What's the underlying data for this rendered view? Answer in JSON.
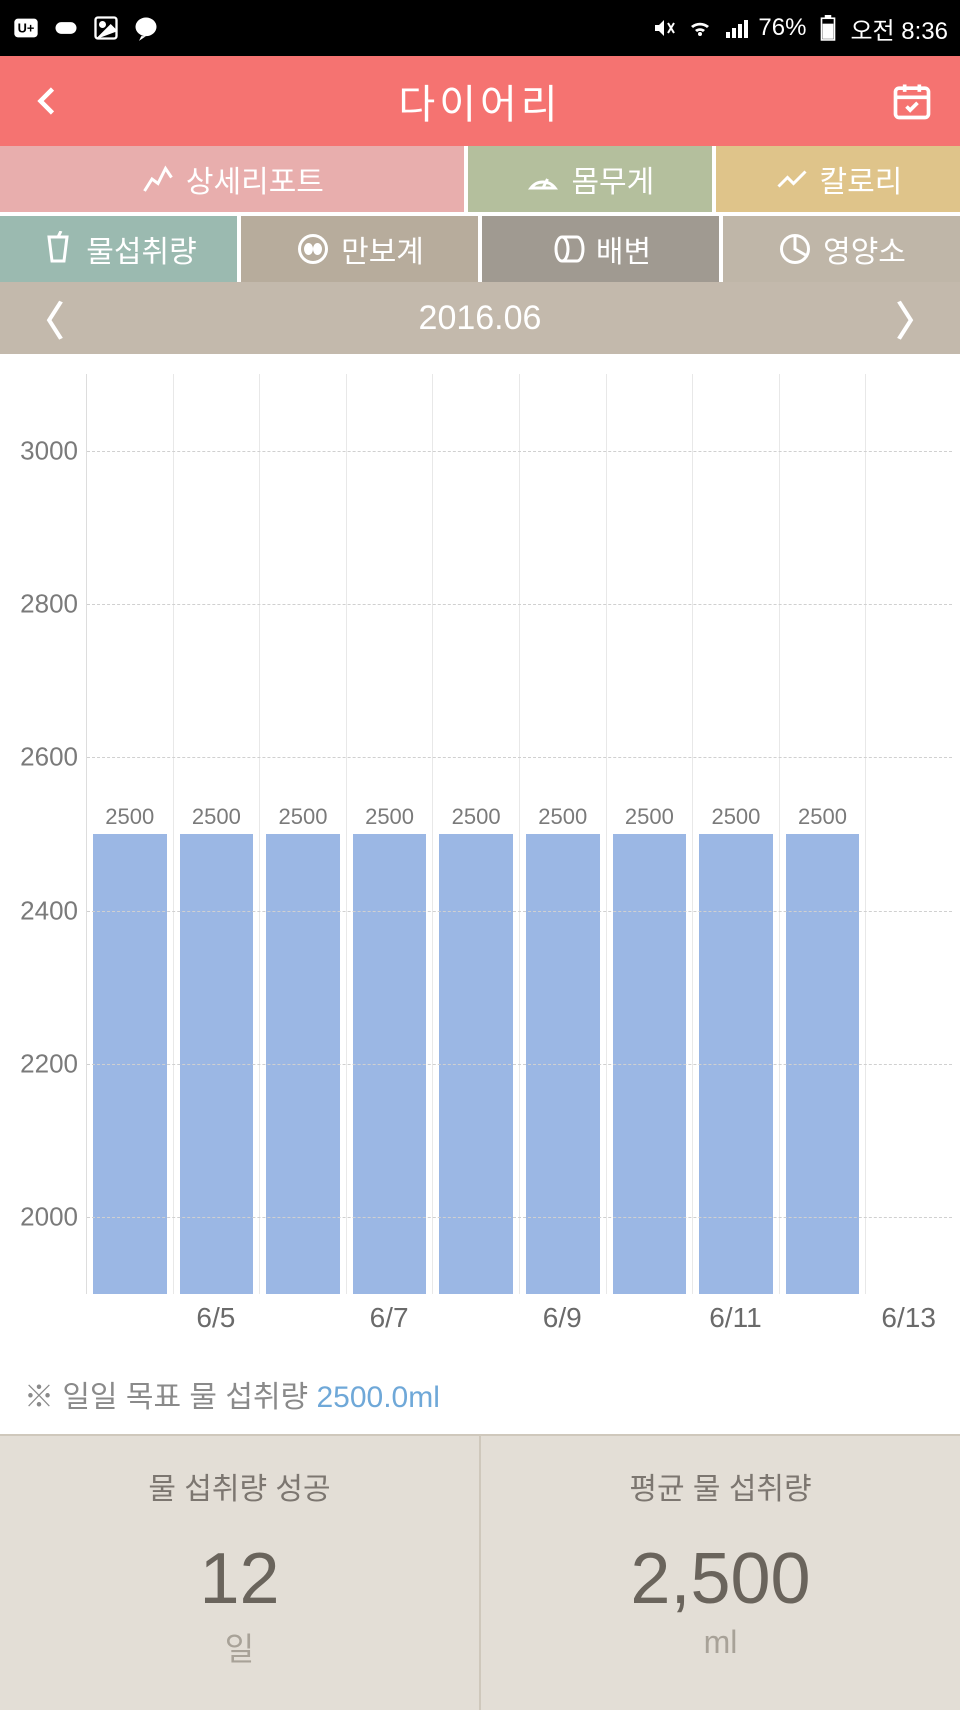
{
  "status_bar": {
    "carrier_icon": "U+",
    "battery_pct": "76%",
    "time": "오전 8:36"
  },
  "header": {
    "title": "다이어리"
  },
  "tabs": {
    "report": "상세리포트",
    "weight": "몸무게",
    "calorie": "칼로리",
    "water": "물섭취량",
    "steps": "만보계",
    "bowel": "배변",
    "nutrition": "영양소"
  },
  "month_nav": {
    "label": "2016.06"
  },
  "chart": {
    "type": "bar",
    "ylim": [
      1900,
      3100
    ],
    "yticks": [
      2000,
      2200,
      2400,
      2600,
      2800,
      3000
    ],
    "bar_color": "#9bb7e4",
    "grid_color": "#d0d0d0",
    "background_color": "#ffffff",
    "label_fontsize": 22,
    "axis_fontsize": 26,
    "bars": [
      {
        "x": "",
        "value": 2500,
        "label": "2500"
      },
      {
        "x": "6/5",
        "value": 2500,
        "label": "2500"
      },
      {
        "x": "",
        "value": 2500,
        "label": "2500"
      },
      {
        "x": "6/7",
        "value": 2500,
        "label": "2500"
      },
      {
        "x": "",
        "value": 2500,
        "label": "2500"
      },
      {
        "x": "6/9",
        "value": 2500,
        "label": "2500"
      },
      {
        "x": "",
        "value": 2500,
        "label": "2500"
      },
      {
        "x": "6/11",
        "value": 2500,
        "label": "2500"
      },
      {
        "x": "",
        "value": 2500,
        "label": "2500"
      },
      {
        "x": "6/13",
        "value": null,
        "label": ""
      }
    ]
  },
  "goal": {
    "prefix": "※ 일일 목표 물 섭취량",
    "value": "2500.0ml"
  },
  "stats": {
    "success": {
      "title": "물 섭취량 성공",
      "value": "12",
      "unit": "일"
    },
    "average": {
      "title": "평균 물 섭취량",
      "value": "2,500",
      "unit": "ml"
    }
  },
  "colors": {
    "header_bg": "#f57371",
    "tab_report": "#e8aead",
    "tab_weight": "#b4bf9d",
    "tab_calorie": "#dfc48a",
    "tab_water": "#9bbab0",
    "tab_steps": "#b7ac9c",
    "tab_bowel": "#a09a91",
    "tab_nutrition": "#bfb6a8",
    "month_bg": "#c3b9ac",
    "stats_bg": "#e3ded6"
  }
}
